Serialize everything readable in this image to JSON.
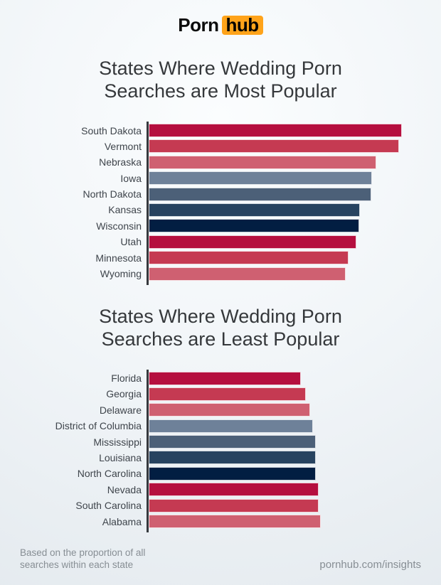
{
  "brand": {
    "logo_left": "Porn",
    "logo_right": "hub",
    "logo_accent_color": "#ffa31a"
  },
  "colors": {
    "background_center": "#fbfdfe",
    "background_edge": "#e2e8ed",
    "axis": "#36393e",
    "title_text": "#35383b",
    "label_text": "#3e444b",
    "footer_text": "#878e94",
    "palette": {
      "dark_red": "#b50f3f",
      "red": "#c53a52",
      "light_red": "#cf6071",
      "slate_blue": "#6e8199",
      "mid_blue": "#4c6078",
      "dark_blue": "#274360",
      "navy": "#021e42"
    }
  },
  "chart_data": [
    {
      "type": "bar",
      "orientation": "horizontal",
      "title": "States Where Wedding Porn Searches are Most Popular",
      "title_lines": [
        "States Where Wedding Porn",
        "Searches are Most Popular"
      ],
      "categories": [
        "South Dakota",
        "Vermont",
        "Nebraska",
        "Iowa",
        "North Dakota",
        "Kansas",
        "Wisconsin",
        "Utah",
        "Minnesota",
        "Wyoming"
      ],
      "values": [
        100,
        98.9,
        89.9,
        88.3,
        88.0,
        83.4,
        83.1,
        82.0,
        79.0,
        77.8
      ],
      "value_scale": "bar length as % of longest bar (no numeric axis shown in image)",
      "bar_colors": [
        "#b50f3f",
        "#c53a52",
        "#cf6071",
        "#6e8199",
        "#4c6078",
        "#274360",
        "#021e42",
        "#b50f3f",
        "#c53a52",
        "#cf6071"
      ],
      "xlim": [
        0,
        100
      ],
      "grid": false,
      "legend": "none"
    },
    {
      "type": "bar",
      "orientation": "horizontal",
      "title": "States Where Wedding Porn Searches are Least Popular",
      "title_lines": [
        "States Where Wedding Porn",
        "Searches are Least Popular"
      ],
      "categories": [
        "Florida",
        "Georgia",
        "Delaware",
        "District of Columbia",
        "Mississippi",
        "Louisiana",
        "North Carolina",
        "Nevada",
        "South Carolina",
        "Alabama"
      ],
      "values": [
        60.1,
        62.1,
        63.8,
        64.9,
        66.0,
        66.0,
        66.0,
        67.1,
        67.1,
        68.0
      ],
      "value_scale": "bar length as % of longest bar in top chart (shared scale, no numeric axis shown)",
      "bar_colors": [
        "#b50f3f",
        "#c53a52",
        "#cf6071",
        "#6e8199",
        "#4c6078",
        "#274360",
        "#021e42",
        "#b50f3f",
        "#c53a52",
        "#cf6071"
      ],
      "xlim": [
        0,
        100
      ],
      "grid": false,
      "legend": "none"
    }
  ],
  "footer": {
    "note_lines": [
      "Based on the proportion of all",
      "searches within each state"
    ],
    "site": "pornhub.com/insights"
  }
}
